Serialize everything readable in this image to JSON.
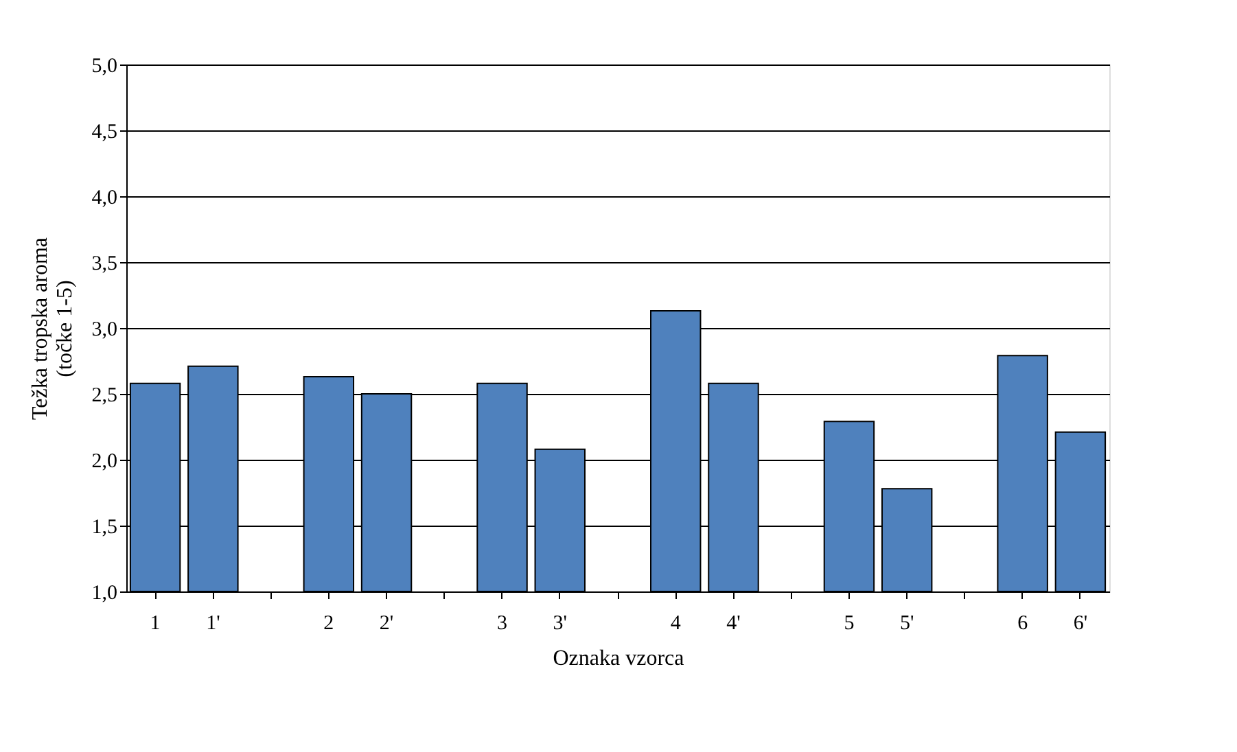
{
  "chart_data": {
    "type": "bar",
    "xlabel": "Oznaka vzorca",
    "ylabel": "Težka tropska aroma\n(točke 1-5)",
    "categories": [
      "1",
      "1'",
      null,
      "2",
      "2'",
      null,
      "3",
      "3'",
      null,
      "4",
      "4'",
      null,
      "5",
      "5'",
      null,
      "6",
      "6'"
    ],
    "values": [
      2.58,
      2.71,
      null,
      2.63,
      2.5,
      null,
      2.58,
      2.08,
      null,
      3.13,
      2.58,
      null,
      2.29,
      1.78,
      null,
      2.79,
      2.21
    ],
    "color": "#4f81bd",
    "ylim": [
      1,
      5
    ],
    "yticks": [
      {
        "value": 1,
        "label": "1,0"
      },
      {
        "value": 1.5,
        "label": "1,5"
      },
      {
        "value": 2,
        "label": "2,0"
      },
      {
        "value": 2.5,
        "label": "2,5"
      },
      {
        "value": 3,
        "label": "3,0"
      },
      {
        "value": 3.5,
        "label": "3,5"
      },
      {
        "value": 4,
        "label": "4,0"
      },
      {
        "value": 4.5,
        "label": "4,5"
      },
      {
        "value": 5,
        "label": "5,0"
      }
    ],
    "grid": "y"
  }
}
